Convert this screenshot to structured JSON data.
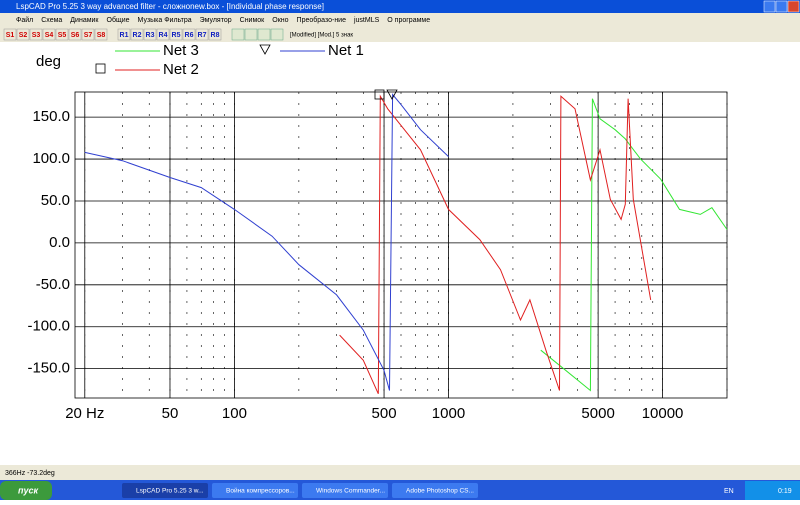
{
  "window": {
    "title": "LspCAD Pro 5.25 3 way advanced filter - сложноnew.box - [Individual phase response]",
    "menu": [
      "Файл",
      "Схема",
      "Динамик",
      "Общие",
      "Музыка Фильтра",
      "Эмулятор",
      "Снимок",
      "Окно",
      "Преобразо-ние",
      "justMLS",
      "О программе"
    ],
    "s_buttons": [
      "S1",
      "S2",
      "S3",
      "S4",
      "S5",
      "S6",
      "S7",
      "S8"
    ],
    "r_buttons": [
      "R1",
      "R2",
      "R3",
      "R4",
      "R5",
      "R6",
      "R7",
      "R8"
    ],
    "status_field": "[Modified] [Mod.] 5 знак",
    "status_bar": "366Hz -73.2deg"
  },
  "chart_data": {
    "type": "line",
    "xscale": "log",
    "ylabel": "deg",
    "grid": true,
    "xlim": [
      18,
      20000
    ],
    "ylim": [
      -185,
      180
    ],
    "xticks": [
      {
        "value": 20,
        "label": "20 Hz"
      },
      50,
      100,
      500,
      1000,
      5000,
      10000
    ],
    "yticks": [
      {
        "value": 150,
        "label": "150.0"
      },
      {
        "value": 100,
        "label": "100.0"
      },
      {
        "value": 50,
        "label": "50.0"
      },
      {
        "value": 0,
        "label": "0.0"
      },
      {
        "value": -50,
        "label": "-50.0"
      },
      {
        "value": -100,
        "label": "-100.0"
      },
      {
        "value": -150,
        "label": "-150.0"
      }
    ],
    "series": [
      {
        "name": "Net 3",
        "color": "#33e633",
        "x": [
          2700,
          3300,
          4600,
          4700,
          5100,
          6000,
          6700,
          7900,
          9800,
          12000,
          15000,
          17000,
          20000
        ],
        "values": [
          -128,
          -146,
          -176,
          172,
          148,
          135,
          124,
          100,
          76,
          40,
          34,
          42,
          16
        ]
      },
      {
        "name": "Net 2",
        "color": "#e02020",
        "x": [
          310,
          400,
          470,
          480,
          520,
          740,
          1000,
          1400,
          1750,
          2170,
          2400,
          2850,
          3300,
          3350,
          3900,
          4600,
          5100,
          5700,
          6400,
          6700,
          6900,
          7300,
          8800
        ],
        "values": [
          -110,
          -140,
          -180,
          175,
          160,
          111,
          40,
          4,
          -32,
          -92,
          -68,
          -128,
          -176,
          175,
          160,
          75,
          111,
          52,
          28,
          46,
          172,
          52,
          -68
        ]
      },
      {
        "name": "Net 1",
        "color": "#3040d0",
        "x": [
          20,
          30,
          50,
          70,
          100,
          150,
          200,
          300,
          400,
          500,
          530,
          548,
          600,
          740,
          1000
        ],
        "values": [
          108,
          98,
          78,
          66,
          40,
          8,
          -26,
          -62,
          -104,
          -152,
          -176,
          177,
          165,
          135,
          103
        ]
      }
    ]
  },
  "taskbar": {
    "start": "пуск",
    "items": [
      "LspCAD Pro 5.25 3 w...",
      "Война компрессоров...",
      "Windows Commander...",
      "Adobe Photoshop CS..."
    ],
    "lang": "EN",
    "clock": "0:19"
  }
}
